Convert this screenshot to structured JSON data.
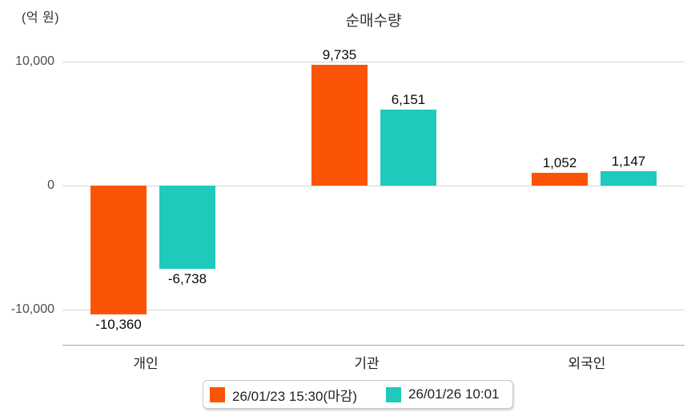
{
  "chart_data": {
    "type": "bar",
    "title": "순매수량",
    "ylabel": "(억 원)",
    "categories": [
      "개인",
      "기관",
      "외국인"
    ],
    "series": [
      {
        "name": "26/01/23 15:30(마감)",
        "color": "#fc5406",
        "values": [
          -10360,
          9735,
          1052
        ],
        "labels": [
          "-10,360",
          "9,735",
          "1,052"
        ]
      },
      {
        "name": "26/01/26 10:01",
        "color": "#1fc9bc",
        "values": [
          -6738,
          6151,
          1147
        ],
        "labels": [
          "-6,738",
          "6,151",
          "1,147"
        ]
      }
    ],
    "y_ticks": [
      {
        "value": 10000,
        "label": "10,000"
      },
      {
        "value": 0,
        "label": "0"
      },
      {
        "value": -10000,
        "label": "-10,000"
      }
    ],
    "ylim": [
      -12800,
      11400
    ],
    "grid": true,
    "legend_position": "bottom"
  }
}
